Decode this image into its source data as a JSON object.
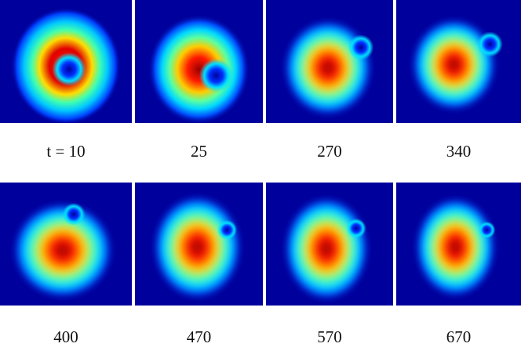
{
  "panels": [
    {
      "label": "t = 10"
    },
    {
      "label": "25"
    },
    {
      "label": "270"
    },
    {
      "label": "340"
    },
    {
      "label": "400"
    },
    {
      "label": "470"
    },
    {
      "label": "570"
    },
    {
      "label": "670"
    }
  ]
}
